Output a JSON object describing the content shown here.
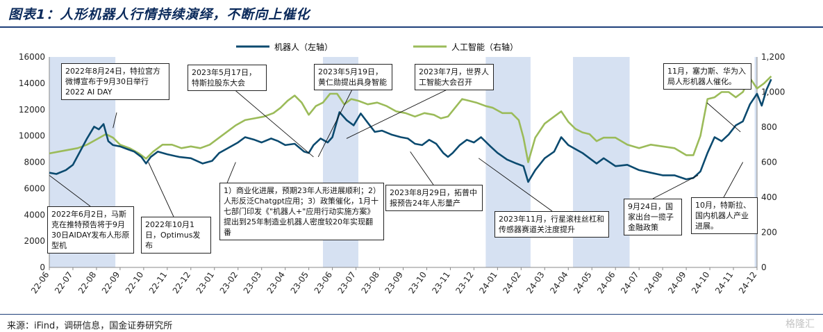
{
  "header": {
    "title": "图表1：人形机器人行情持续演绎，不断向上催化"
  },
  "footer": {
    "source": "来源：iFind，调研信息，国金证券研究所",
    "watermark": "格隆汇"
  },
  "colors": {
    "robot": "#0b4a6f",
    "ai": "#9bbb59",
    "shade": "#d6e1f2",
    "rule": "#1d3f7a"
  },
  "chart_data": {
    "type": "line",
    "x": [
      "22-06",
      "22-07",
      "22-08",
      "22-09",
      "22-10",
      "22-11",
      "22-12",
      "23-01",
      "23-02",
      "23-03",
      "23-04",
      "23-05",
      "23-06",
      "23-07",
      "23-08",
      "23-09",
      "23-10",
      "23-11",
      "23-12",
      "24-01",
      "24-02",
      "24-03",
      "24-04",
      "24-05",
      "24-06",
      "24-07",
      "24-08",
      "24-09",
      "24-10",
      "24-11",
      "24-12"
    ],
    "series": [
      {
        "name": "机器人（左轴）",
        "axis": "left",
        "points": [
          [
            0,
            7200
          ],
          [
            0.3,
            7100
          ],
          [
            0.7,
            7400
          ],
          [
            1,
            7800
          ],
          [
            1.3,
            8800
          ],
          [
            1.6,
            9800
          ],
          [
            1.9,
            10700
          ],
          [
            2.1,
            10500
          ],
          [
            2.3,
            10900
          ],
          [
            2.5,
            9600
          ],
          [
            2.7,
            9300
          ],
          [
            3,
            9200
          ],
          [
            3.3,
            9000
          ],
          [
            3.6,
            8800
          ],
          [
            3.9,
            8400
          ],
          [
            4.1,
            7900
          ],
          [
            4.3,
            8400
          ],
          [
            4.6,
            8800
          ],
          [
            5,
            8600
          ],
          [
            5.5,
            8400
          ],
          [
            6,
            8300
          ],
          [
            6.5,
            7900
          ],
          [
            6.9,
            8100
          ],
          [
            7.2,
            8700
          ],
          [
            7.6,
            9100
          ],
          [
            8,
            9500
          ],
          [
            8.3,
            9900
          ],
          [
            8.7,
            9700
          ],
          [
            9,
            9500
          ],
          [
            9.4,
            9800
          ],
          [
            9.7,
            9600
          ],
          [
            10,
            9300
          ],
          [
            10.4,
            9400
          ],
          [
            10.8,
            8800
          ],
          [
            11,
            8700
          ],
          [
            11.2,
            9300
          ],
          [
            11.5,
            9800
          ],
          [
            11.8,
            9500
          ],
          [
            12,
            9900
          ],
          [
            12.3,
            11800
          ],
          [
            12.6,
            11200
          ],
          [
            12.9,
            10800
          ],
          [
            13.2,
            11700
          ],
          [
            13.5,
            11000
          ],
          [
            13.8,
            10300
          ],
          [
            14.1,
            10400
          ],
          [
            14.5,
            10100
          ],
          [
            14.9,
            9900
          ],
          [
            15.2,
            9800
          ],
          [
            15.5,
            9400
          ],
          [
            15.8,
            9300
          ],
          [
            16.1,
            9700
          ],
          [
            16.4,
            9400
          ],
          [
            16.7,
            8700
          ],
          [
            16.9,
            8400
          ],
          [
            17.1,
            8700
          ],
          [
            17.4,
            9300
          ],
          [
            17.7,
            9700
          ],
          [
            18,
            9500
          ],
          [
            18.3,
            9900
          ],
          [
            18.7,
            9200
          ],
          [
            19,
            8700
          ],
          [
            19.4,
            8200
          ],
          [
            19.8,
            7900
          ],
          [
            20.1,
            7700
          ],
          [
            20.3,
            6500
          ],
          [
            20.6,
            7400
          ],
          [
            21,
            8300
          ],
          [
            21.4,
            8800
          ],
          [
            21.7,
            9900
          ],
          [
            22,
            9300
          ],
          [
            22.3,
            9000
          ],
          [
            22.6,
            8700
          ],
          [
            22.9,
            8300
          ],
          [
            23.2,
            7900
          ],
          [
            23.5,
            8300
          ],
          [
            24,
            7700
          ],
          [
            24.5,
            7800
          ],
          [
            25,
            7400
          ],
          [
            25.5,
            7200
          ],
          [
            26,
            7000
          ],
          [
            26.5,
            7000
          ],
          [
            27,
            6700
          ],
          [
            27.3,
            6800
          ],
          [
            27.6,
            7300
          ],
          [
            27.9,
            8700
          ],
          [
            28.2,
            9900
          ],
          [
            28.5,
            9600
          ],
          [
            28.8,
            10100
          ],
          [
            29.1,
            10800
          ],
          [
            29.4,
            11100
          ],
          [
            29.7,
            12400
          ],
          [
            30,
            13200
          ],
          [
            30.2,
            12300
          ],
          [
            30.4,
            13500
          ],
          [
            30.6,
            14300
          ]
        ]
      },
      {
        "name": "人工智能（右轴）",
        "axis": "right",
        "points": [
          [
            0,
            650
          ],
          [
            0.4,
            660
          ],
          [
            0.8,
            670
          ],
          [
            1.2,
            680
          ],
          [
            1.6,
            700
          ],
          [
            2,
            730
          ],
          [
            2.4,
            760
          ],
          [
            2.7,
            740
          ],
          [
            3,
            700
          ],
          [
            3.4,
            680
          ],
          [
            3.8,
            650
          ],
          [
            4.1,
            620
          ],
          [
            4.4,
            660
          ],
          [
            4.8,
            700
          ],
          [
            5.2,
            700
          ],
          [
            5.6,
            680
          ],
          [
            6,
            690
          ],
          [
            6.4,
            680
          ],
          [
            6.8,
            700
          ],
          [
            7.1,
            730
          ],
          [
            7.5,
            770
          ],
          [
            7.9,
            810
          ],
          [
            8.3,
            840
          ],
          [
            8.7,
            850
          ],
          [
            9.1,
            860
          ],
          [
            9.5,
            880
          ],
          [
            9.8,
            910
          ],
          [
            10.1,
            950
          ],
          [
            10.4,
            980
          ],
          [
            10.7,
            940
          ],
          [
            11,
            870
          ],
          [
            11.3,
            920
          ],
          [
            11.6,
            940
          ],
          [
            11.9,
            990
          ],
          [
            12.2,
            990
          ],
          [
            12.5,
            930
          ],
          [
            12.8,
            960
          ],
          [
            13.1,
            950
          ],
          [
            13.5,
            930
          ],
          [
            13.9,
            940
          ],
          [
            14.3,
            920
          ],
          [
            14.7,
            890
          ],
          [
            15.1,
            880
          ],
          [
            15.5,
            860
          ],
          [
            15.9,
            880
          ],
          [
            16.3,
            870
          ],
          [
            16.6,
            850
          ],
          [
            16.9,
            860
          ],
          [
            17.2,
            910
          ],
          [
            17.5,
            960
          ],
          [
            17.8,
            950
          ],
          [
            18.1,
            940
          ],
          [
            18.5,
            920
          ],
          [
            18.8,
            910
          ],
          [
            19.2,
            880
          ],
          [
            19.6,
            880
          ],
          [
            19.9,
            840
          ],
          [
            20.1,
            740
          ],
          [
            20.3,
            600
          ],
          [
            20.6,
            740
          ],
          [
            21,
            820
          ],
          [
            21.4,
            860
          ],
          [
            21.7,
            890
          ],
          [
            22,
            830
          ],
          [
            22.3,
            790
          ],
          [
            22.6,
            770
          ],
          [
            22.9,
            760
          ],
          [
            23.2,
            720
          ],
          [
            23.5,
            740
          ],
          [
            24,
            740
          ],
          [
            24.5,
            700
          ],
          [
            25,
            680
          ],
          [
            25.5,
            700
          ],
          [
            26,
            690
          ],
          [
            26.5,
            680
          ],
          [
            27,
            640
          ],
          [
            27.3,
            640
          ],
          [
            27.6,
            750
          ],
          [
            27.9,
            960
          ],
          [
            28.2,
            970
          ],
          [
            28.5,
            1000
          ],
          [
            28.8,
            1000
          ],
          [
            29.1,
            970
          ],
          [
            29.4,
            1000
          ],
          [
            29.7,
            1080
          ],
          [
            30,
            1020
          ],
          [
            30.3,
            1050
          ],
          [
            30.6,
            1090
          ]
        ]
      }
    ],
    "y_left": {
      "lim": [
        0,
        16000
      ],
      "ticks": [
        "0",
        "2000",
        "4000",
        "6000",
        "8000",
        "10000",
        "12000",
        "14000",
        "16000"
      ]
    },
    "y_right": {
      "lim": [
        0,
        1200
      ],
      "ticks": [
        "0",
        "200",
        "400",
        "600",
        "800",
        "1,000",
        "1,200"
      ]
    },
    "shaded_ranges": [
      [
        0,
        2.8
      ],
      [
        11.6,
        13.1
      ],
      [
        18.5,
        20.4
      ],
      [
        22.2,
        24.6
      ],
      [
        29.9,
        31.9
      ]
    ],
    "legend": {
      "position": "top-center"
    },
    "grid": false,
    "annotations": [
      {
        "text": "2022年8月24日，特拉宫方微博宣布于9月30日举行2022 AI DAY",
        "target": [
          2.7,
          10600
        ]
      },
      {
        "text": "2022年6月2日，马斯克在推特预告将于9月30日AIDAY发布人形原型机",
        "target": [
          0,
          7000
        ]
      },
      {
        "text": "2022年10月1日，Optimus发布",
        "target": [
          4.2,
          8000
        ]
      },
      {
        "text": "2023年5月17日，特斯拉股东大会",
        "target": [
          11.2,
          8400
        ]
      },
      {
        "text": "2023年5月19日，黄仁勋提出具身智能",
        "target": [
          11.4,
          8400
        ]
      },
      {
        "text": "2023年7月，世界人工智能大会召开",
        "target": [
          12.6,
          9800
        ]
      },
      {
        "text": "1）商业化进展，预期23年人形进展顺利；2）人形反泛Chatgpt应用；3）政策催化，1月十七部门印发《\"机器人+\"应用行动实施方案》提出到25年制造业机器人密度较20年实现翻番",
        "target": [
          7.9,
          8000
        ]
      },
      {
        "text": "2023年8月29日，拓普中报预告24年人形量产",
        "target": [
          15.3,
          8800
        ]
      },
      {
        "text": "2023年11月，行星滚柱丝杠和传感器赛道关注度提升",
        "target": [
          18.2,
          8300
        ]
      },
      {
        "text": "11月，塞力斯、华为入局人形机器人催化。",
        "target": [
          29.3,
          10300
        ]
      },
      {
        "text": "9月24日，国家出台一揽子金融政策",
        "target": [
          27.5,
          7000
        ]
      },
      {
        "text": "10月，特斯拉、国内机器人产业进展。",
        "target": [
          29.4,
          8000
        ]
      }
    ]
  }
}
